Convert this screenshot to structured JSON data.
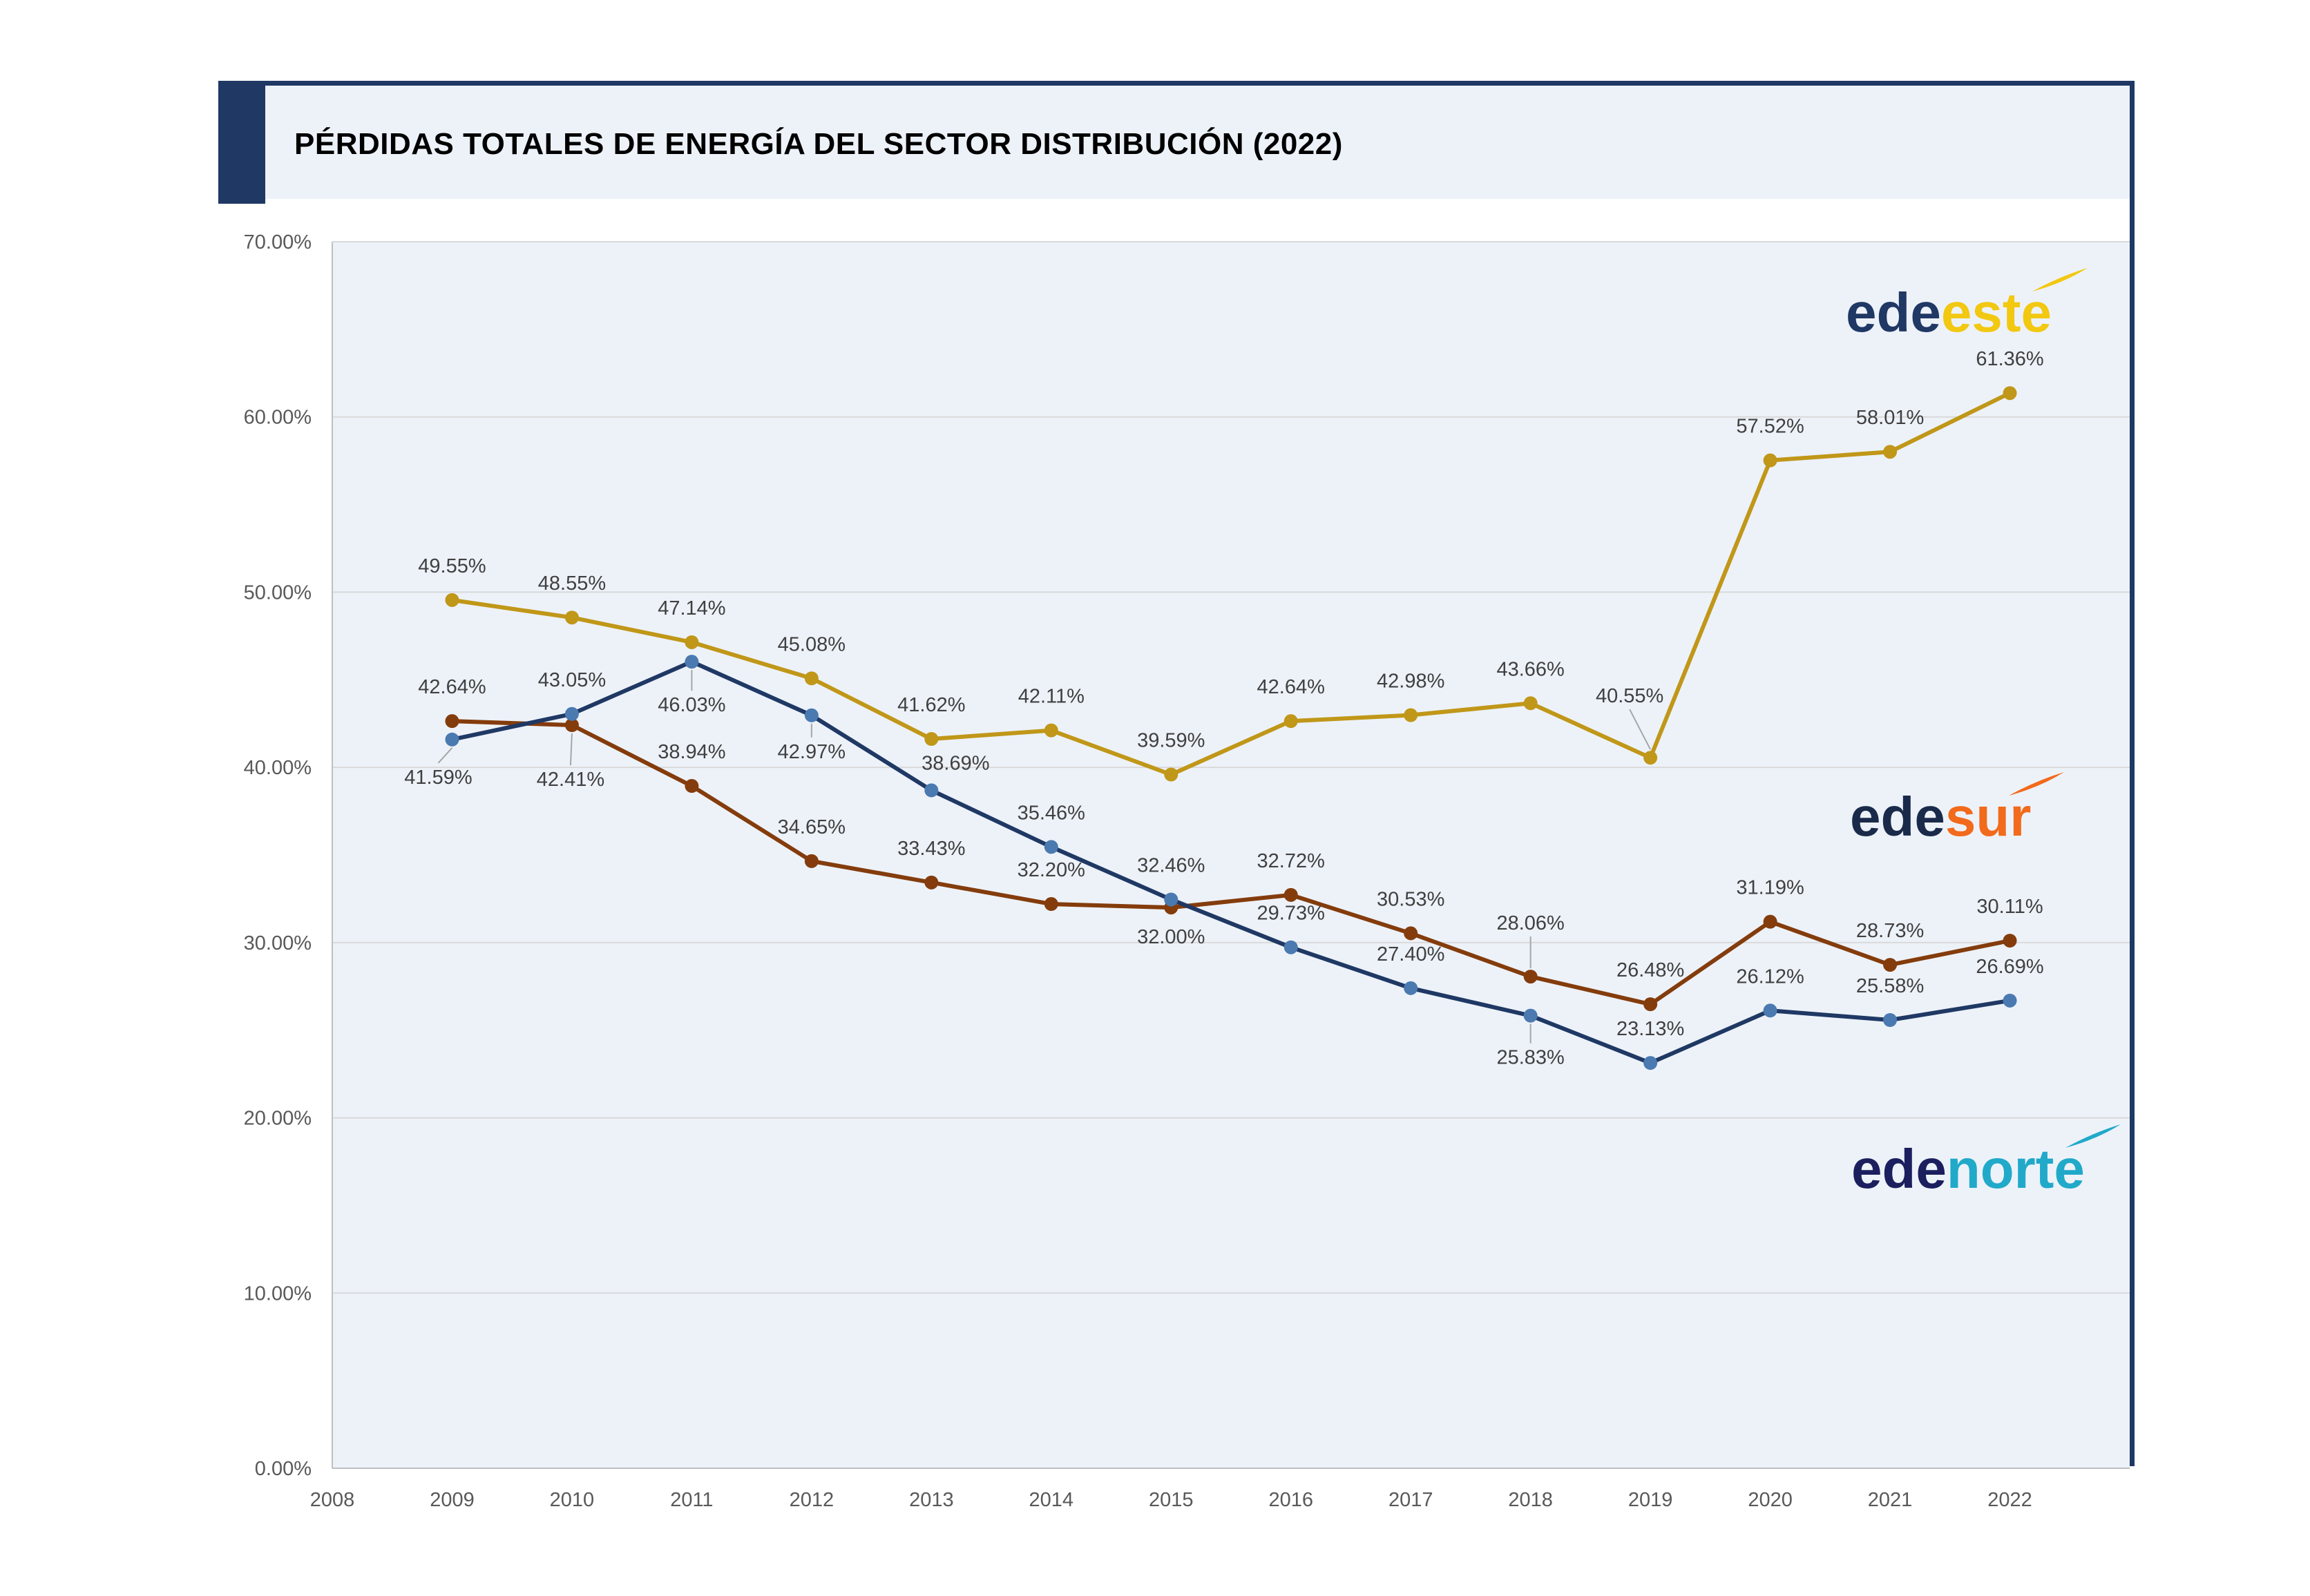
{
  "page": {
    "title": "PÉRDIDAS TOTALES DE ENERGÍA DEL SECTOR DISTRIBUCIÓN (2022)"
  },
  "colors": {
    "frame": "#1f3864",
    "plot_bg": "#edf2f9",
    "grid": "#d9d9d9",
    "edeeste_line": "#c09718",
    "edeeste_marker": "#c09718",
    "edesur_line": "#843c0c",
    "edesur_marker": "#843c0c",
    "edenorte_line": "#1f3864",
    "edenorte_marker": "#4a7ab0"
  },
  "logos": [
    {
      "name": "edeeste",
      "prefix": "ede",
      "suffix": "este",
      "prefix_color": "#1f3864",
      "suffix_color": "#f2c811",
      "icon": "swoosh-icon"
    },
    {
      "name": "edesur",
      "prefix": "ede",
      "suffix": "sur",
      "prefix_color": "#1a2a4a",
      "suffix_color": "#f26a1b",
      "icon": "swoosh-icon"
    },
    {
      "name": "edenorte",
      "prefix": "ede",
      "suffix": "norte",
      "prefix_color": "#1b1f5e",
      "suffix_color": "#21a9c9",
      "icon": "swoosh-icon"
    }
  ],
  "chart_data": {
    "type": "line",
    "title": "PÉRDIDAS TOTALES DE ENERGÍA DEL SECTOR DISTRIBUCIÓN (2022)",
    "xlabel": "",
    "ylabel": "",
    "xlim": [
      2008,
      2023
    ],
    "ylim": [
      0,
      70
    ],
    "x_ticks": [
      "2008",
      "2009",
      "2010",
      "2011",
      "2012",
      "2013",
      "2014",
      "2015",
      "2016",
      "2017",
      "2018",
      "2019",
      "2020",
      "2021",
      "2022"
    ],
    "y_ticks": [
      "0.00%",
      "10.00%",
      "20.00%",
      "30.00%",
      "40.00%",
      "50.00%",
      "60.00%",
      "70.00%"
    ],
    "y_tick_values": [
      0,
      10,
      20,
      30,
      40,
      50,
      60,
      70
    ],
    "grid": true,
    "legend": "logos at right",
    "x": [
      2009,
      2010,
      2011,
      2012,
      2013,
      2014,
      2015,
      2016,
      2017,
      2018,
      2019,
      2020,
      2021,
      2022
    ],
    "series": [
      {
        "name": "edeeste",
        "color": "#c09718",
        "values": [
          49.55,
          48.55,
          47.14,
          45.08,
          41.62,
          42.11,
          39.59,
          42.64,
          42.98,
          43.66,
          40.55,
          57.52,
          58.01,
          61.36
        ],
        "labels": [
          "49.55%",
          "48.55%",
          "47.14%",
          "45.08%",
          "41.62%",
          "42.11%",
          "39.59%",
          "42.64%",
          "42.98%",
          "43.66%",
          "40.55%",
          "57.52%",
          "58.01%",
          "61.36%"
        ]
      },
      {
        "name": "edesur",
        "color": "#843c0c",
        "values": [
          42.64,
          42.41,
          38.94,
          34.65,
          33.43,
          32.2,
          32.0,
          32.72,
          30.53,
          28.06,
          26.48,
          31.19,
          28.73,
          30.11
        ],
        "labels": [
          "42.64%",
          "42.41%",
          "38.94%",
          "34.65%",
          "33.43%",
          "32.20%",
          "32.00%",
          "32.72%",
          "30.53%",
          "28.06%",
          "26.48%",
          "31.19%",
          "28.73%",
          "30.11%"
        ]
      },
      {
        "name": "edenorte",
        "color": "#1f3864",
        "values": [
          41.59,
          43.05,
          46.03,
          42.97,
          38.69,
          35.46,
          32.46,
          29.73,
          27.4,
          25.83,
          23.13,
          26.12,
          25.58,
          26.69
        ],
        "labels": [
          "41.59%",
          "43.05%",
          "46.03%",
          "42.97%",
          "38.69%",
          "35.46%",
          "32.46%",
          "29.73%",
          "27.40%",
          "25.83%",
          "23.13%",
          "26.12%",
          "25.58%",
          "26.69%"
        ]
      }
    ]
  }
}
